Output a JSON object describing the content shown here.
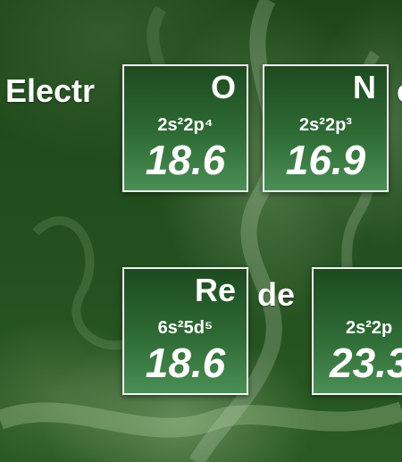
{
  "headings": {
    "top_left": "Electr",
    "top_right_partial": "e",
    "middle": "de"
  },
  "tiles": [
    {
      "symbol": "O",
      "config": "2s²2p⁴",
      "value": "18.6"
    },
    {
      "symbol": "N",
      "config": "2s²2p³",
      "value": "16.9"
    },
    {
      "symbol": "Re",
      "config": "6s²5d⁵",
      "value": "18.6"
    },
    {
      "symbol": "",
      "config": "2s²2p",
      "value": "23.3"
    }
  ],
  "colors": {
    "background": "#1f4a1b",
    "tile_top": "#1d4a20",
    "tile_bottom": "#4a8f55",
    "tile_border": "#f4f4f4",
    "text": "#ffffff"
  }
}
